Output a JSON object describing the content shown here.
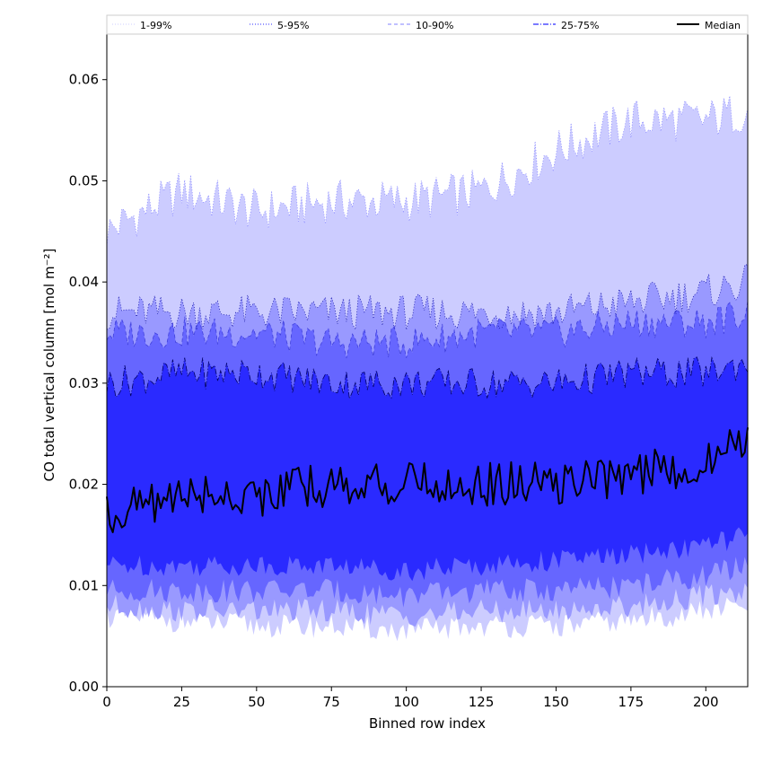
{
  "chart_data": {
    "type": "area",
    "xlabel": "Binned row index",
    "ylabel": "CO total vertical column [mol m⁻²]",
    "xlim": [
      0,
      214
    ],
    "ylim": [
      0,
      0.0645
    ],
    "x_ticks": [
      "0",
      "25",
      "50",
      "75",
      "100",
      "125",
      "150",
      "175",
      "200"
    ],
    "x_tick_values": [
      0,
      25,
      50,
      75,
      100,
      125,
      150,
      175,
      200
    ],
    "y_ticks": [
      "0.00",
      "0.01",
      "0.02",
      "0.03",
      "0.04",
      "0.05",
      "0.06"
    ],
    "y_tick_values": [
      0,
      0.01,
      0.02,
      0.03,
      0.04,
      0.05,
      0.06
    ],
    "grid": false,
    "legend_position": "top, spanning full width",
    "legend": [
      {
        "label": "1-99%",
        "style": "dotted",
        "color": "#ccccff"
      },
      {
        "label": "5-95%",
        "style": "dotted",
        "color": "#2b2bff"
      },
      {
        "label": "10-90%",
        "style": "dashed",
        "color": "#8080ff"
      },
      {
        "label": "25-75%",
        "style": "dashdot",
        "color": "#2a2aff"
      },
      {
        "label": "Median",
        "style": "solid",
        "color": "#000000"
      }
    ],
    "band_colors": [
      "#ccccff",
      "#9999ff",
      "#6666ff",
      "#2a2aff"
    ],
    "median_color": "#000000",
    "x_anchor": [
      0,
      25,
      50,
      75,
      100,
      125,
      150,
      175,
      200,
      214
    ],
    "series": [
      {
        "name": "1-99%",
        "upper_anchor": [
          0.045,
          0.049,
          0.047,
          0.048,
          0.048,
          0.049,
          0.053,
          0.056,
          0.056,
          0.057
        ],
        "lower_anchor": [
          0.007,
          0.0065,
          0.006,
          0.006,
          0.0055,
          0.006,
          0.006,
          0.0065,
          0.0075,
          0.008
        ]
      },
      {
        "name": "5-95%",
        "upper_anchor": [
          0.037,
          0.037,
          0.037,
          0.037,
          0.037,
          0.037,
          0.037,
          0.038,
          0.039,
          0.04
        ],
        "lower_anchor": [
          0.008,
          0.0075,
          0.0075,
          0.0075,
          0.007,
          0.0075,
          0.0075,
          0.008,
          0.009,
          0.0095
        ]
      },
      {
        "name": "10-90%",
        "upper_anchor": [
          0.035,
          0.035,
          0.035,
          0.034,
          0.034,
          0.035,
          0.035,
          0.036,
          0.036,
          0.037
        ],
        "lower_anchor": [
          0.0095,
          0.0095,
          0.0095,
          0.0095,
          0.009,
          0.0095,
          0.0095,
          0.01,
          0.011,
          0.012
        ]
      },
      {
        "name": "25-75%",
        "upper_anchor": [
          0.03,
          0.031,
          0.031,
          0.03,
          0.03,
          0.03,
          0.03,
          0.031,
          0.031,
          0.032
        ],
        "lower_anchor": [
          0.012,
          0.012,
          0.012,
          0.012,
          0.0115,
          0.012,
          0.0125,
          0.013,
          0.014,
          0.015
        ]
      },
      {
        "name": "Median",
        "values_anchor": [
          0.017,
          0.019,
          0.019,
          0.02,
          0.02,
          0.02,
          0.02,
          0.021,
          0.022,
          0.025
        ]
      }
    ]
  }
}
